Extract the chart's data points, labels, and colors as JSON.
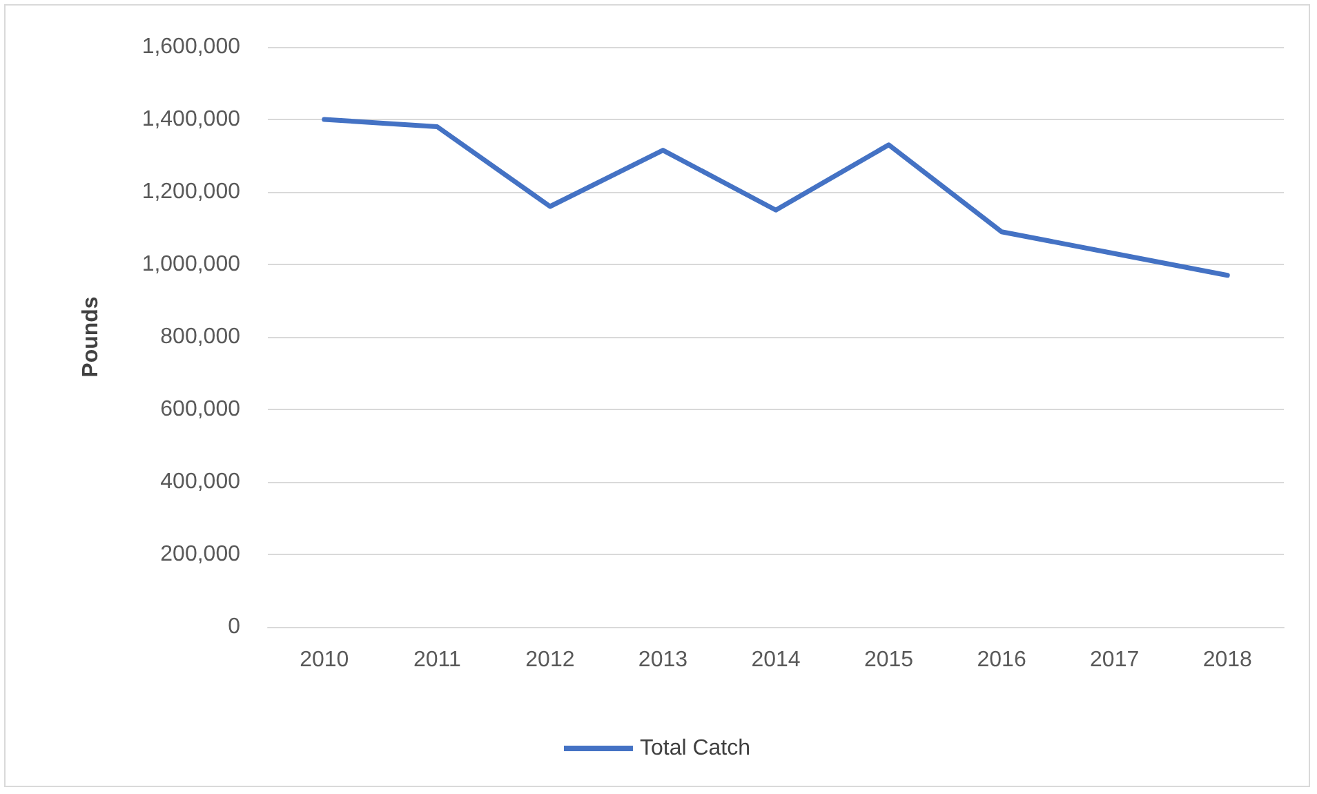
{
  "chart_data": {
    "type": "line",
    "ylabel": "Pounds",
    "categories": [
      "2010",
      "2011",
      "2012",
      "2013",
      "2014",
      "2015",
      "2016",
      "2017",
      "2018"
    ],
    "series": [
      {
        "name": "Total Catch",
        "color": "#4472c4",
        "values": [
          1400000,
          1380000,
          1160000,
          1315000,
          1150000,
          1330000,
          1090000,
          1030000,
          970000
        ]
      }
    ],
    "ylim": [
      0,
      1600000
    ],
    "yticks": [
      0,
      {
        "value": 200000,
        "label": "200,000"
      },
      {
        "value": 400000,
        "label": "400,000"
      },
      {
        "value": 600000,
        "label": "600,000"
      },
      {
        "value": 800000,
        "label": "800,000"
      },
      {
        "value": 1000000,
        "label": "1,000,000"
      },
      {
        "value": 1200000,
        "label": "1,200,000"
      },
      {
        "value": 1400000,
        "label": "1,400,000"
      },
      {
        "value": 1600000,
        "label": "1,600,000"
      }
    ],
    "grid": "y",
    "legend": "bottom",
    "marker": "none",
    "line_style": "solid"
  }
}
